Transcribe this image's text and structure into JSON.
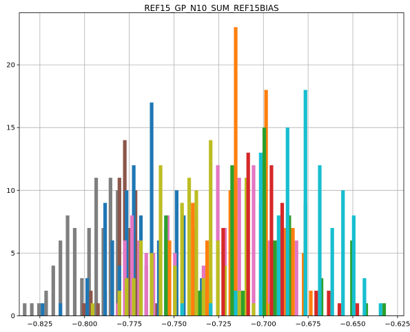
{
  "chart_data": {
    "type": "bar",
    "title": "REF15_GP_N10_SUM_REF15BIAS",
    "xlabel": "",
    "ylabel": "",
    "xlim": [
      -0.8365,
      -0.6215
    ],
    "ylim": [
      0,
      24.15
    ],
    "grid": true,
    "x_ticks": [
      {
        "value": -0.825,
        "label": "−0.825"
      },
      {
        "value": -0.8,
        "label": "−0.800"
      },
      {
        "value": -0.775,
        "label": "−0.775"
      },
      {
        "value": -0.75,
        "label": "−0.750"
      },
      {
        "value": -0.725,
        "label": "−0.725"
      },
      {
        "value": -0.7,
        "label": "−0.700"
      },
      {
        "value": -0.675,
        "label": "−0.675"
      },
      {
        "value": -0.65,
        "label": "−0.650"
      },
      {
        "value": -0.625,
        "label": "−0.625"
      }
    ],
    "y_ticks": [
      {
        "value": 0,
        "label": "0"
      },
      {
        "value": 5,
        "label": "5"
      },
      {
        "value": 10,
        "label": "10"
      },
      {
        "value": 15,
        "label": "15"
      },
      {
        "value": 20,
        "label": "20"
      }
    ],
    "series": [
      {
        "color": "#7f7f7f",
        "bars": [
          [
            -0.8335,
            1
          ],
          [
            -0.8295,
            1
          ],
          [
            -0.8255,
            1
          ],
          [
            -0.8215,
            2
          ],
          [
            -0.8175,
            4
          ],
          [
            -0.8135,
            6
          ],
          [
            -0.8095,
            8
          ],
          [
            -0.8055,
            7
          ],
          [
            -0.8015,
            3
          ],
          [
            -0.7975,
            7
          ],
          [
            -0.7935,
            11
          ],
          [
            -0.7895,
            7
          ],
          [
            -0.7855,
            11
          ],
          [
            -0.7815,
            10
          ],
          [
            -0.7775,
            6
          ],
          [
            -0.7735,
            4
          ],
          [
            -0.7695,
            3
          ],
          [
            -0.7655,
            1
          ]
        ]
      },
      {
        "color": "#8c564b",
        "bars": [
          [
            -0.8005,
            1
          ],
          [
            -0.7965,
            2
          ],
          [
            -0.7925,
            1
          ],
          [
            -0.7885,
            2
          ],
          [
            -0.7845,
            6
          ],
          [
            -0.7805,
            11
          ],
          [
            -0.7775,
            14
          ],
          [
            -0.7745,
            7
          ],
          [
            -0.7715,
            10
          ],
          [
            -0.7685,
            5
          ],
          [
            -0.7655,
            4
          ],
          [
            -0.7625,
            2
          ],
          [
            -0.7595,
            1
          ]
        ]
      },
      {
        "color": "#1f77b4",
        "bars": [
          [
            -0.8235,
            1
          ],
          [
            -0.8135,
            1
          ],
          [
            -0.7985,
            3
          ],
          [
            -0.7885,
            9
          ],
          [
            -0.7845,
            6
          ],
          [
            -0.7805,
            4
          ],
          [
            -0.7765,
            10
          ],
          [
            -0.7725,
            12
          ],
          [
            -0.7685,
            8
          ],
          [
            -0.7625,
            17
          ],
          [
            -0.7585,
            6
          ],
          [
            -0.7545,
            7
          ],
          [
            -0.7485,
            10
          ],
          [
            -0.7445,
            8
          ],
          [
            -0.7385,
            7
          ],
          [
            -0.7345,
            3
          ]
        ]
      },
      {
        "color": "#e377c2",
        "bars": [
          [
            -0.7815,
            1
          ],
          [
            -0.7775,
            6
          ],
          [
            -0.7735,
            8
          ],
          [
            -0.7695,
            6
          ],
          [
            -0.7655,
            5
          ],
          [
            -0.7615,
            5
          ],
          [
            -0.7575,
            1
          ],
          [
            -0.7535,
            8
          ],
          [
            -0.7495,
            5
          ],
          [
            -0.7455,
            3
          ],
          [
            -0.7415,
            2
          ],
          [
            -0.7375,
            8
          ],
          [
            -0.7335,
            4
          ],
          [
            -0.7295,
            3
          ],
          [
            -0.7255,
            12
          ],
          [
            -0.7215,
            7
          ],
          [
            -0.7175,
            4
          ],
          [
            -0.7135,
            11
          ],
          [
            -0.7095,
            11
          ],
          [
            -0.7055,
            12
          ],
          [
            -0.7015,
            9
          ],
          [
            -0.6975,
            6
          ],
          [
            -0.6935,
            6
          ],
          [
            -0.6895,
            4
          ],
          [
            -0.6855,
            3
          ],
          [
            -0.6815,
            6
          ]
        ]
      },
      {
        "color": "#bcbd22",
        "bars": [
          [
            -0.7955,
            1
          ],
          [
            -0.7805,
            2
          ],
          [
            -0.7765,
            3
          ],
          [
            -0.7725,
            3
          ],
          [
            -0.7685,
            6
          ],
          [
            -0.7625,
            5
          ],
          [
            -0.7575,
            12
          ],
          [
            -0.7535,
            2
          ],
          [
            -0.7495,
            4
          ],
          [
            -0.7455,
            9
          ],
          [
            -0.7415,
            11
          ],
          [
            -0.7375,
            10
          ],
          [
            -0.7335,
            3
          ],
          [
            -0.7295,
            14
          ],
          [
            -0.7255,
            6
          ],
          [
            -0.7215,
            4
          ],
          [
            -0.7175,
            8
          ],
          [
            -0.7135,
            2
          ],
          [
            -0.7095,
            11
          ],
          [
            -0.7055,
            1
          ],
          [
            -0.7015,
            2
          ],
          [
            -0.6975,
            1
          ]
        ]
      },
      {
        "color": "#ff7f0e",
        "bars": [
          [
            -0.7525,
            6
          ],
          [
            -0.7395,
            9
          ],
          [
            -0.7315,
            6
          ],
          [
            -0.7185,
            10
          ],
          [
            -0.7155,
            23
          ],
          [
            -0.6985,
            18
          ],
          [
            -0.6875,
            7
          ],
          [
            -0.6835,
            7
          ],
          [
            -0.6775,
            5
          ],
          [
            -0.6735,
            2
          ]
        ]
      },
      {
        "color": "#2ca02c",
        "bars": [
          [
            -0.7545,
            8
          ],
          [
            -0.7355,
            2
          ],
          [
            -0.7175,
            12
          ],
          [
            -0.7115,
            2
          ],
          [
            -0.6995,
            15
          ],
          [
            -0.6935,
            6
          ],
          [
            -0.6855,
            8
          ],
          [
            -0.6765,
            9
          ],
          [
            -0.6675,
            3
          ],
          [
            -0.6505,
            6
          ],
          [
            -0.6425,
            1
          ],
          [
            -0.6325,
            1
          ]
        ]
      },
      {
        "color": "#d62728",
        "bars": [
          [
            -0.7225,
            7
          ],
          [
            -0.7085,
            13
          ],
          [
            -0.6955,
            12
          ],
          [
            -0.6895,
            9
          ],
          [
            -0.6705,
            2
          ],
          [
            -0.6635,
            2
          ],
          [
            -0.6575,
            1
          ],
          [
            -0.6475,
            1
          ]
        ]
      },
      {
        "color": "#17becf",
        "bars": [
          [
            -0.7455,
            1
          ],
          [
            -0.7295,
            1
          ],
          [
            -0.7155,
            2
          ],
          [
            -0.7015,
            13
          ],
          [
            -0.6915,
            8
          ],
          [
            -0.6865,
            15
          ],
          [
            -0.6765,
            18
          ],
          [
            -0.6685,
            12
          ],
          [
            -0.6615,
            7
          ],
          [
            -0.6555,
            10
          ],
          [
            -0.6495,
            8
          ],
          [
            -0.6435,
            3
          ],
          [
            -0.6345,
            1
          ]
        ]
      }
    ]
  }
}
